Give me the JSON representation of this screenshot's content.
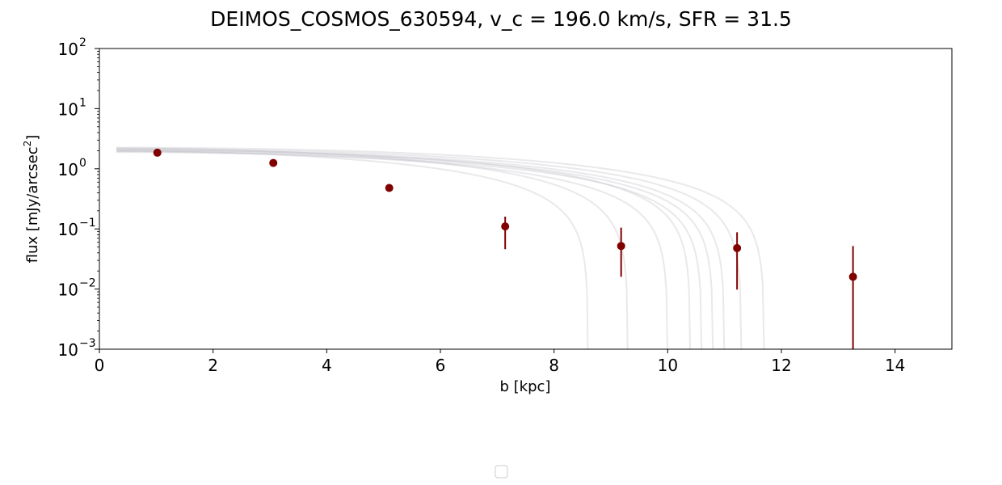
{
  "chart_data": {
    "type": "scatter",
    "title": "DEIMOS_COSMOS_630594, v_c = 196.0 km/s, SFR = 31.5",
    "xlabel": "b [kpc]",
    "ylabel_main": "flux [mJy/arcsec",
    "ylabel_sup": "2",
    "ylabel_close": "]",
    "xlim": [
      0,
      15
    ],
    "ylim": [
      0.001,
      100
    ],
    "yscale": "log",
    "grid": false,
    "legend": "bottom-center, empty",
    "x_ticks": [
      0,
      2,
      4,
      6,
      8,
      10,
      12,
      14
    ],
    "x_tick_labels": [
      "0",
      "2",
      "4",
      "6",
      "8",
      "10",
      "12",
      "14"
    ],
    "y_ticks": [
      {
        "value": 100,
        "base": "10",
        "exp": "2"
      },
      {
        "value": 10,
        "base": "10",
        "exp": "1"
      },
      {
        "value": 1,
        "base": "10",
        "exp": "0"
      },
      {
        "value": 0.1,
        "base": "10",
        "exp": "−1"
      },
      {
        "value": 0.01,
        "base": "10",
        "exp": "−2"
      },
      {
        "value": 0.001,
        "base": "10",
        "exp": "−3"
      }
    ],
    "series": [
      {
        "marker_color": "#800000",
        "x": [
          1.02,
          3.06,
          5.1,
          7.14,
          9.18,
          11.22,
          13.26
        ],
        "y": [
          1.85,
          1.25,
          0.48,
          0.11,
          0.052,
          0.048,
          0.016
        ],
        "yerr_low": [
          1.85,
          1.25,
          0.48,
          0.046,
          0.016,
          0.0098,
          0.001
        ],
        "yerr_high": [
          1.85,
          1.25,
          0.48,
          0.16,
          0.105,
          0.088,
          0.052
        ]
      }
    ],
    "model_curves": {
      "color": "#c0c0c8",
      "x_start": 0.3,
      "curves": [
        {
          "y0": 2.0,
          "cutoff": 8.6,
          "p": 1.9
        },
        {
          "y0": 2.2,
          "cutoff": 9.3,
          "p": 1.9
        },
        {
          "y0": 1.95,
          "cutoff": 10.0,
          "p": 1.95
        },
        {
          "y0": 2.1,
          "cutoff": 10.4,
          "p": 2.0
        },
        {
          "y0": 1.9,
          "cutoff": 10.6,
          "p": 2.0
        },
        {
          "y0": 2.0,
          "cutoff": 10.8,
          "p": 2.0
        },
        {
          "y0": 2.05,
          "cutoff": 11.0,
          "p": 2.05
        },
        {
          "y0": 2.15,
          "cutoff": 11.3,
          "p": 2.1
        },
        {
          "y0": 2.25,
          "cutoff": 11.7,
          "p": 2.15
        }
      ]
    }
  }
}
